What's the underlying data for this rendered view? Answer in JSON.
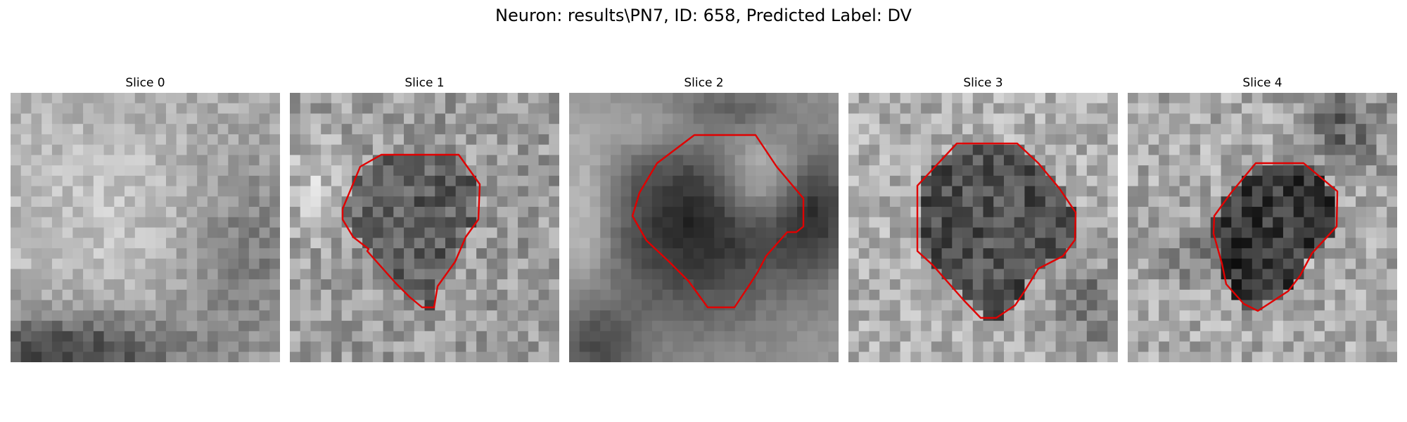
{
  "figure": {
    "title": "Neuron: results\\PN7, ID: 658, Predicted Label: DV",
    "contour_color": "#e00000"
  },
  "panels": [
    {
      "title": "Slice 0",
      "has_contour": false,
      "description": "noisy grey texture, lighter top-left, dark band at bottom"
    },
    {
      "title": "Slice 1",
      "has_contour": true,
      "description": "noisy texture with darker rounded region outlined in red"
    },
    {
      "title": "Slice 2",
      "has_contour": true,
      "description": "smooth blurred dark blob with bright ring segments, outlined in red"
    },
    {
      "title": "Slice 3",
      "has_contour": true,
      "description": "noisy texture with dark octagonal region outlined in red"
    },
    {
      "title": "Slice 4",
      "has_contour": true,
      "description": "noisy texture with dark region outlined in red"
    }
  ]
}
